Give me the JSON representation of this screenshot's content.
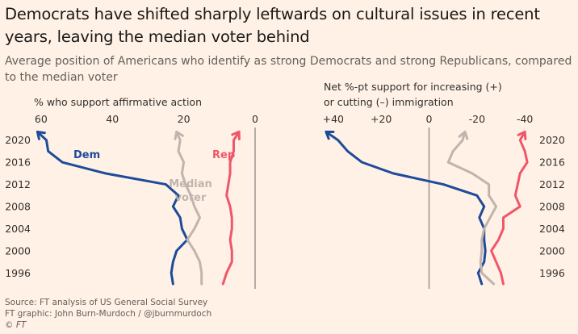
{
  "header": {
    "title": "Democrats have shifted sharply leftwards on cultural issues in recent years, leaving the median voter behind",
    "subtitle": "Average position of Americans who identify as strong Democrats and strong Republicans, compared to the median voter"
  },
  "footer": {
    "source": "Source: FT analysis of US General Social Survey",
    "graphic": "FT graphic: John Burn-Murdoch / @jburnmurdoch",
    "copyright": "© FT"
  },
  "colors": {
    "background": "#fff1e5",
    "dem": "#1d4b9a",
    "rep": "#f0566a",
    "median": "#c0b5ae",
    "zero_line": "#9e9690",
    "tick_text": "#33302e"
  },
  "chart_data": [
    {
      "type": "line",
      "title": "% who support affirmative action",
      "x_axis_reversed": true,
      "xlim": [
        62,
        0
      ],
      "xticks": [
        60,
        40,
        20,
        0
      ],
      "xtick_labels": [
        "60",
        "40",
        "20",
        "0"
      ],
      "ylim": [
        1994,
        2022
      ],
      "yticks": [
        1996,
        2000,
        2004,
        2008,
        2012,
        2016,
        2020
      ],
      "ytick_labels": [
        "1996",
        "2000",
        "2004",
        "2008",
        "2012",
        "2016",
        "2020"
      ],
      "ytick_side": "left",
      "y_axis_orientation": "year, bottom to top",
      "series": [
        {
          "name": "Dem",
          "color_key": "dem",
          "arrow_at_end": true,
          "points": [
            {
              "year": 1994,
              "value": 23
            },
            {
              "year": 1996,
              "value": 23.5
            },
            {
              "year": 1998,
              "value": 23
            },
            {
              "year": 2000,
              "value": 22
            },
            {
              "year": 2002,
              "value": 19
            },
            {
              "year": 2004,
              "value": 20.5
            },
            {
              "year": 2006,
              "value": 21
            },
            {
              "year": 2008,
              "value": 23
            },
            {
              "year": 2010,
              "value": 21.5
            },
            {
              "year": 2012,
              "value": 25
            },
            {
              "year": 2014,
              "value": 42
            },
            {
              "year": 2016,
              "value": 54
            },
            {
              "year": 2018,
              "value": 58
            },
            {
              "year": 2020,
              "value": 58.5
            },
            {
              "year": 2021.5,
              "value": 61
            }
          ]
        },
        {
          "name": "Median voter",
          "color_key": "median",
          "arrow_at_end": true,
          "points": [
            {
              "year": 1994,
              "value": 15
            },
            {
              "year": 1996,
              "value": 15
            },
            {
              "year": 1998,
              "value": 15.5
            },
            {
              "year": 2000,
              "value": 17
            },
            {
              "year": 2002,
              "value": 19
            },
            {
              "year": 2004,
              "value": 17
            },
            {
              "year": 2006,
              "value": 15.5
            },
            {
              "year": 2008,
              "value": 17
            },
            {
              "year": 2010,
              "value": 18
            },
            {
              "year": 2012,
              "value": 19.5
            },
            {
              "year": 2014,
              "value": 20.5
            },
            {
              "year": 2016,
              "value": 20
            },
            {
              "year": 2018,
              "value": 21.5
            },
            {
              "year": 2020,
              "value": 21
            },
            {
              "year": 2021.5,
              "value": 22
            }
          ]
        },
        {
          "name": "Rep",
          "color_key": "rep",
          "arrow_at_end": true,
          "points": [
            {
              "year": 1994,
              "value": 9
            },
            {
              "year": 1996,
              "value": 8
            },
            {
              "year": 1998,
              "value": 6.5
            },
            {
              "year": 2000,
              "value": 6.5
            },
            {
              "year": 2002,
              "value": 7
            },
            {
              "year": 2004,
              "value": 6.5
            },
            {
              "year": 2006,
              "value": 6.5
            },
            {
              "year": 2008,
              "value": 7
            },
            {
              "year": 2010,
              "value": 8
            },
            {
              "year": 2012,
              "value": 7.5
            },
            {
              "year": 2014,
              "value": 7
            },
            {
              "year": 2016,
              "value": 7
            },
            {
              "year": 2018,
              "value": 6
            },
            {
              "year": 2020,
              "value": 6
            },
            {
              "year": 2021.5,
              "value": 4.5
            }
          ]
        }
      ],
      "labels": {
        "dem": "Dem",
        "rep": "Rep",
        "median_line1": "Median",
        "median_line2": "voter"
      }
    },
    {
      "type": "line",
      "title_line1": "Net %-pt support for increasing (+)",
      "title_line2": "or cutting (–) immigration",
      "x_axis_reversed": true,
      "xlim": [
        45,
        -45
      ],
      "xticks": [
        40,
        20,
        0,
        -20,
        -40
      ],
      "xtick_labels": [
        "+40",
        "+20",
        "0",
        "-20",
        "-40"
      ],
      "ylim": [
        1994,
        2022
      ],
      "yticks": [
        1996,
        2000,
        2004,
        2008,
        2012,
        2016,
        2020
      ],
      "ytick_labels": [
        "1996",
        "2000",
        "2004",
        "2008",
        "2012",
        "2016",
        "2020"
      ],
      "ytick_side": "right",
      "series": [
        {
          "name": "Dem",
          "color_key": "dem",
          "arrow_at_end": true,
          "points": [
            {
              "year": 1994,
              "value": -22
            },
            {
              "year": 1996,
              "value": -20.5
            },
            {
              "year": 1998,
              "value": -23
            },
            {
              "year": 2000,
              "value": -23.5
            },
            {
              "year": 2002,
              "value": -23
            },
            {
              "year": 2004,
              "value": -23
            },
            {
              "year": 2006,
              "value": -21
            },
            {
              "year": 2008,
              "value": -23
            },
            {
              "year": 2010,
              "value": -20
            },
            {
              "year": 2012,
              "value": -6
            },
            {
              "year": 2014,
              "value": 15
            },
            {
              "year": 2016,
              "value": 28
            },
            {
              "year": 2018,
              "value": 34
            },
            {
              "year": 2020,
              "value": 38
            },
            {
              "year": 2021.5,
              "value": 43
            }
          ]
        },
        {
          "name": "Median voter",
          "color_key": "median",
          "arrow_at_end": true,
          "points": [
            {
              "year": 1994,
              "value": -27
            },
            {
              "year": 1996,
              "value": -22
            },
            {
              "year": 1998,
              "value": -21.5
            },
            {
              "year": 2000,
              "value": -22
            },
            {
              "year": 2002,
              "value": -22
            },
            {
              "year": 2004,
              "value": -23
            },
            {
              "year": 2006,
              "value": -25.5
            },
            {
              "year": 2008,
              "value": -28
            },
            {
              "year": 2010,
              "value": -25
            },
            {
              "year": 2012,
              "value": -25
            },
            {
              "year": 2014,
              "value": -18
            },
            {
              "year": 2016,
              "value": -8
            },
            {
              "year": 2018,
              "value": -10
            },
            {
              "year": 2020,
              "value": -14
            },
            {
              "year": 2021.5,
              "value": -15
            }
          ]
        },
        {
          "name": "Rep",
          "color_key": "rep",
          "arrow_at_end": true,
          "points": [
            {
              "year": 1994,
              "value": -31
            },
            {
              "year": 1996,
              "value": -30
            },
            {
              "year": 1998,
              "value": -28
            },
            {
              "year": 2000,
              "value": -26
            },
            {
              "year": 2002,
              "value": -29
            },
            {
              "year": 2004,
              "value": -31
            },
            {
              "year": 2006,
              "value": -31
            },
            {
              "year": 2008,
              "value": -38
            },
            {
              "year": 2010,
              "value": -36
            },
            {
              "year": 2012,
              "value": -37
            },
            {
              "year": 2014,
              "value": -38
            },
            {
              "year": 2016,
              "value": -41
            },
            {
              "year": 2018,
              "value": -40
            },
            {
              "year": 2020,
              "value": -38
            },
            {
              "year": 2021.5,
              "value": -40
            }
          ]
        }
      ]
    }
  ]
}
